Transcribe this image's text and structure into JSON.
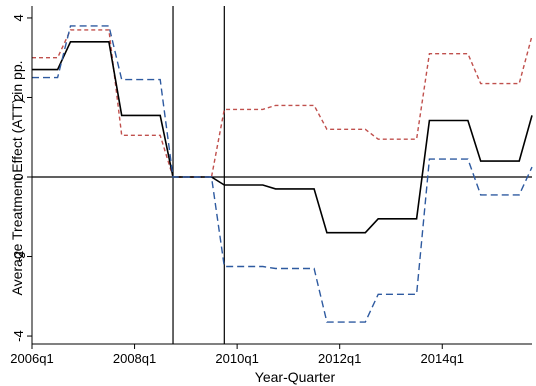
{
  "chart_data": {
    "type": "line",
    "xlabel": "Year-Quarter",
    "ylabel": "Average Treatment Effect (ATT) in pp.",
    "xlim": [
      2006.0,
      2015.75
    ],
    "ylim": [
      -4.2,
      4.2
    ],
    "x_ticks": [
      {
        "value": 2006.0,
        "label": "2006q1"
      },
      {
        "value": 2008.0,
        "label": "2008q1"
      },
      {
        "value": 2010.0,
        "label": "2010q1"
      },
      {
        "value": 2012.0,
        "label": "2012q1"
      },
      {
        "value": 2014.0,
        "label": "2014q1"
      }
    ],
    "y_ticks": [
      {
        "value": 4,
        "label": "4"
      },
      {
        "value": 2,
        "label": "2"
      },
      {
        "value": 0,
        "label": "0"
      },
      {
        "value": -2,
        "label": "-2"
      },
      {
        "value": -4,
        "label": "-4"
      }
    ],
    "vertical_lines": [
      2008.75,
      2009.75
    ],
    "horizontal_line": 0,
    "series": [
      {
        "color": "#c0504d",
        "dash": "4,3",
        "points": [
          [
            2006.0,
            3.0
          ],
          [
            2006.5,
            3.0
          ],
          [
            2006.75,
            3.7
          ],
          [
            2007.5,
            3.7
          ],
          [
            2007.75,
            1.05
          ],
          [
            2008.5,
            1.05
          ],
          [
            2008.75,
            0
          ],
          [
            2009.5,
            0
          ],
          [
            2009.75,
            1.7
          ],
          [
            2010.5,
            1.7
          ],
          [
            2010.75,
            1.8
          ],
          [
            2011.5,
            1.8
          ],
          [
            2011.75,
            1.2
          ],
          [
            2012.5,
            1.2
          ],
          [
            2012.75,
            0.95
          ],
          [
            2013.5,
            0.95
          ],
          [
            2013.75,
            3.1
          ],
          [
            2014.5,
            3.1
          ],
          [
            2014.75,
            2.35
          ],
          [
            2015.5,
            2.35
          ],
          [
            2015.75,
            3.55
          ]
        ]
      },
      {
        "color": "#000000",
        "dash": "",
        "points": [
          [
            2006.0,
            2.7
          ],
          [
            2006.5,
            2.7
          ],
          [
            2006.75,
            3.4
          ],
          [
            2007.5,
            3.4
          ],
          [
            2007.75,
            1.55
          ],
          [
            2008.5,
            1.55
          ],
          [
            2008.75,
            0
          ],
          [
            2009.5,
            0
          ],
          [
            2009.75,
            -0.2
          ],
          [
            2010.5,
            -0.2
          ],
          [
            2010.75,
            -0.3
          ],
          [
            2011.5,
            -0.3
          ],
          [
            2011.75,
            -1.4
          ],
          [
            2012.5,
            -1.4
          ],
          [
            2012.75,
            -1.05
          ],
          [
            2013.5,
            -1.05
          ],
          [
            2013.75,
            1.42
          ],
          [
            2014.5,
            1.42
          ],
          [
            2014.75,
            0.4
          ],
          [
            2015.5,
            0.4
          ],
          [
            2015.75,
            1.55
          ]
        ]
      },
      {
        "color": "#2e5aa0",
        "dash": "7,4",
        "points": [
          [
            2006.0,
            2.5
          ],
          [
            2006.5,
            2.5
          ],
          [
            2006.75,
            3.8
          ],
          [
            2007.5,
            3.8
          ],
          [
            2007.75,
            2.45
          ],
          [
            2008.5,
            2.45
          ],
          [
            2008.75,
            0
          ],
          [
            2009.5,
            0
          ],
          [
            2009.75,
            -2.25
          ],
          [
            2010.5,
            -2.25
          ],
          [
            2010.75,
            -2.3
          ],
          [
            2011.5,
            -2.3
          ],
          [
            2011.75,
            -3.65
          ],
          [
            2012.5,
            -3.65
          ],
          [
            2012.75,
            -2.95
          ],
          [
            2013.5,
            -2.95
          ],
          [
            2013.75,
            0.45
          ],
          [
            2014.5,
            0.45
          ],
          [
            2014.75,
            -0.45
          ],
          [
            2015.5,
            -0.45
          ],
          [
            2015.75,
            0.25
          ]
        ]
      }
    ]
  }
}
